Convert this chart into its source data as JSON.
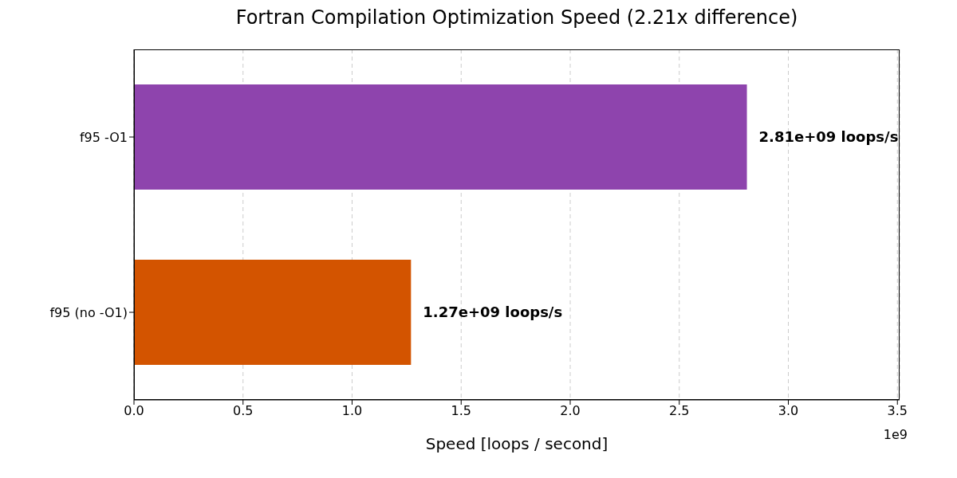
{
  "chart_data": {
    "type": "bar",
    "orientation": "horizontal",
    "title": "Fortran Compilation Optimization Speed (2.21x difference)",
    "xlabel": "Speed [loops / second]",
    "categories": [
      "f95 -O1",
      "f95 (no -O1)"
    ],
    "values": [
      2.81,
      1.27
    ],
    "colors": [
      "#8e44ad",
      "#d35400"
    ],
    "value_labels": [
      "2.81e+09 loops/s",
      "1.27e+09 loops/s"
    ],
    "xlim": [
      0,
      3.51
    ],
    "xticks": [
      {
        "value": 0,
        "label": "0.0"
      },
      0.5,
      {
        "value": 1,
        "label": "1.0"
      },
      1.5,
      {
        "value": 2,
        "label": "2.0"
      },
      2.5,
      {
        "value": 3,
        "label": "3.0"
      },
      3.5
    ],
    "annotations": [
      "1e9"
    ],
    "grid": "x",
    "legend": false
  }
}
